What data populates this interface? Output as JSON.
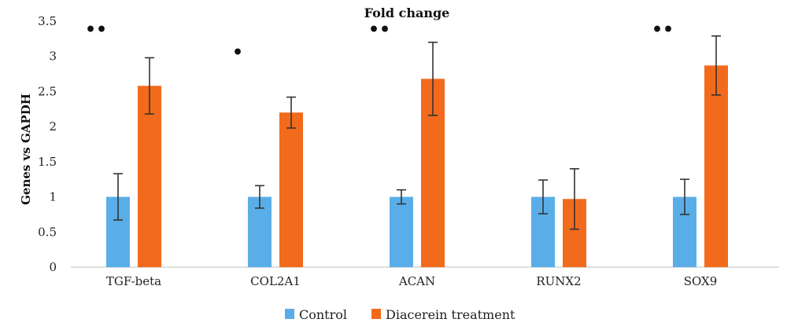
{
  "chart_data": {
    "type": "bar",
    "title": "Fold change",
    "ylabel": "Genes vs GAPDH",
    "xlabel": "",
    "ylim": [
      0,
      3.5
    ],
    "yticks": [
      "0",
      "0.5",
      "1",
      "1.5",
      "2",
      "2.5",
      "3",
      "3.5"
    ],
    "categories": [
      "TGF-beta",
      "COL2A1",
      "ACAN",
      "RUNX2",
      "SOX9"
    ],
    "series": [
      {
        "name": "Control",
        "color": "#5aaee8",
        "values": [
          1.0,
          1.0,
          1.0,
          1.0,
          1.0
        ],
        "error": [
          0.33,
          0.16,
          0.1,
          0.24,
          0.25
        ]
      },
      {
        "name": "Diacerein treatment",
        "color": "#f26a1b",
        "values": [
          2.58,
          2.2,
          2.68,
          0.97,
          2.87
        ],
        "error": [
          0.4,
          0.22,
          0.52,
          0.43,
          0.42
        ]
      }
    ],
    "significance": [
      "••",
      "•",
      "••",
      "",
      "••"
    ],
    "grid": false,
    "legend_position": "bottom"
  }
}
